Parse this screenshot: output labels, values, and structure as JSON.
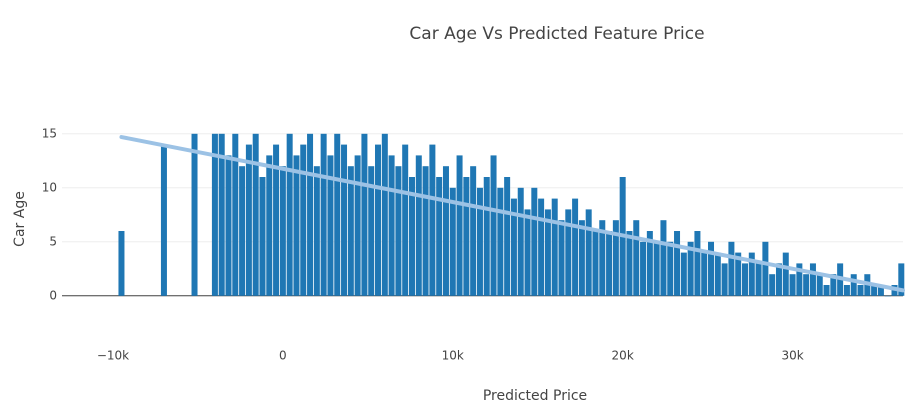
{
  "chart_data": {
    "type": "bar",
    "title": "Car Age Vs Predicted Feature Price",
    "x_label": "Predicted Price",
    "y_label": "Car Age",
    "xlim": [
      -13000,
      36500
    ],
    "ylim": [
      -4,
      16
    ],
    "xticks": [
      {
        "value": -10000,
        "label": "−10k"
      },
      0,
      {
        "value": 10000,
        "label": "10k"
      },
      {
        "value": 20000,
        "label": "20k"
      },
      {
        "value": 30000,
        "label": "30k"
      }
    ],
    "yticks": [
      0,
      5,
      10,
      15
    ],
    "grid": true,
    "series": [
      {
        "type": "bar",
        "color": "#1f77b4",
        "x": [
          -9500,
          -7000,
          -5200,
          -4000,
          -3600,
          -3200,
          -2800,
          -2400,
          -2000,
          -1600,
          -1200,
          -800,
          -400,
          0,
          400,
          800,
          1200,
          1600,
          2000,
          2400,
          2800,
          3200,
          3600,
          4000,
          4400,
          4800,
          5200,
          5600,
          6000,
          6400,
          6800,
          7200,
          7600,
          8000,
          8400,
          8800,
          9200,
          9600,
          10000,
          10400,
          10800,
          11200,
          11600,
          12000,
          12400,
          12800,
          13200,
          13600,
          14000,
          14400,
          14800,
          15200,
          15600,
          16000,
          16400,
          16800,
          17200,
          17600,
          18000,
          18400,
          18800,
          19200,
          19600,
          20000,
          20400,
          20800,
          21200,
          21600,
          22000,
          22400,
          22800,
          23200,
          23600,
          24000,
          24400,
          24800,
          25200,
          25600,
          26000,
          26400,
          26800,
          27200,
          27600,
          28000,
          28400,
          28800,
          29200,
          29600,
          30000,
          30400,
          30800,
          31200,
          31600,
          32000,
          32400,
          32800,
          33200,
          33600,
          34000,
          34400,
          34800,
          35200,
          35600,
          36000,
          36400
        ],
        "values": [
          6,
          14,
          15,
          15,
          15,
          13,
          15,
          12,
          14,
          15,
          11,
          13,
          14,
          12,
          15,
          13,
          14,
          15,
          12,
          15,
          13,
          15,
          14,
          12,
          13,
          15,
          12,
          14,
          15,
          13,
          12,
          14,
          11,
          13,
          12,
          14,
          11,
          12,
          10,
          13,
          11,
          12,
          10,
          11,
          13,
          10,
          11,
          9,
          10,
          8,
          10,
          9,
          8,
          9,
          7,
          8,
          9,
          7,
          8,
          6,
          7,
          6,
          7,
          11,
          6,
          7,
          5,
          6,
          5,
          7,
          5,
          6,
          4,
          5,
          6,
          4,
          5,
          4,
          3,
          5,
          4,
          3,
          4,
          3,
          5,
          2,
          3,
          4,
          2,
          3,
          2,
          3,
          2,
          1,
          2,
          3,
          1,
          2,
          1,
          2,
          1,
          1,
          0,
          1,
          3
        ]
      },
      {
        "type": "line",
        "color": "#9cc2e5",
        "x": [
          -9500,
          36500
        ],
        "values": [
          14.7,
          0.5
        ]
      }
    ]
  }
}
